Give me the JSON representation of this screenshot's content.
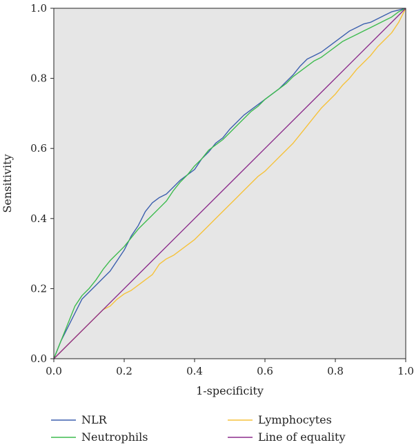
{
  "chart_data": {
    "type": "line",
    "title": "",
    "xlabel": "1-specificity",
    "ylabel": "Sensitivity",
    "xlim": [
      0,
      1
    ],
    "ylim": [
      0,
      1
    ],
    "grid": false,
    "legend_position": "bottom",
    "plot_background": "#e6e6e6",
    "x_ticks": [
      "0.0",
      "0.2",
      "0.4",
      "0.6",
      "0.8",
      "1.0"
    ],
    "y_ticks": [
      "0.0",
      "0.2",
      "0.4",
      "0.6",
      "0.8",
      "1.0"
    ],
    "series": [
      {
        "name": "NLR",
        "color": "#3b5fae",
        "x": [
          0,
          0.02,
          0.04,
          0.06,
          0.08,
          0.1,
          0.12,
          0.14,
          0.16,
          0.18,
          0.2,
          0.22,
          0.24,
          0.26,
          0.28,
          0.3,
          0.32,
          0.34,
          0.36,
          0.38,
          0.4,
          0.42,
          0.44,
          0.46,
          0.48,
          0.5,
          0.52,
          0.54,
          0.56,
          0.58,
          0.6,
          0.62,
          0.64,
          0.66,
          0.68,
          0.7,
          0.72,
          0.74,
          0.76,
          0.78,
          0.8,
          0.82,
          0.84,
          0.86,
          0.88,
          0.9,
          0.92,
          0.94,
          0.96,
          0.98,
          1.0
        ],
        "y": [
          0,
          0.05,
          0.09,
          0.13,
          0.17,
          0.19,
          0.21,
          0.23,
          0.25,
          0.28,
          0.31,
          0.35,
          0.38,
          0.42,
          0.445,
          0.46,
          0.47,
          0.49,
          0.51,
          0.525,
          0.54,
          0.57,
          0.59,
          0.615,
          0.63,
          0.655,
          0.675,
          0.695,
          0.71,
          0.725,
          0.74,
          0.755,
          0.77,
          0.79,
          0.81,
          0.835,
          0.855,
          0.865,
          0.875,
          0.89,
          0.905,
          0.92,
          0.935,
          0.945,
          0.955,
          0.96,
          0.97,
          0.98,
          0.99,
          0.995,
          1.0
        ]
      },
      {
        "name": "Neutrophils",
        "color": "#3dbb4e",
        "x": [
          0,
          0.02,
          0.04,
          0.06,
          0.08,
          0.1,
          0.12,
          0.14,
          0.16,
          0.18,
          0.2,
          0.22,
          0.24,
          0.26,
          0.28,
          0.3,
          0.32,
          0.34,
          0.36,
          0.38,
          0.4,
          0.42,
          0.44,
          0.46,
          0.48,
          0.5,
          0.52,
          0.54,
          0.56,
          0.58,
          0.6,
          0.62,
          0.64,
          0.66,
          0.68,
          0.7,
          0.72,
          0.74,
          0.76,
          0.78,
          0.8,
          0.82,
          0.84,
          0.86,
          0.88,
          0.9,
          0.92,
          0.94,
          0.96,
          0.98,
          1.0
        ],
        "y": [
          0,
          0.05,
          0.1,
          0.15,
          0.18,
          0.2,
          0.225,
          0.255,
          0.28,
          0.3,
          0.32,
          0.345,
          0.37,
          0.39,
          0.41,
          0.43,
          0.45,
          0.48,
          0.505,
          0.525,
          0.55,
          0.57,
          0.595,
          0.61,
          0.625,
          0.645,
          0.665,
          0.685,
          0.705,
          0.72,
          0.74,
          0.755,
          0.77,
          0.785,
          0.805,
          0.82,
          0.835,
          0.85,
          0.86,
          0.875,
          0.89,
          0.905,
          0.915,
          0.925,
          0.935,
          0.945,
          0.955,
          0.965,
          0.975,
          0.99,
          1.0
        ]
      },
      {
        "name": "Lymphocytes",
        "color": "#f6c23a",
        "x": [
          0,
          0.02,
          0.04,
          0.06,
          0.08,
          0.1,
          0.12,
          0.14,
          0.16,
          0.18,
          0.2,
          0.22,
          0.24,
          0.26,
          0.28,
          0.3,
          0.32,
          0.34,
          0.36,
          0.38,
          0.4,
          0.42,
          0.44,
          0.46,
          0.48,
          0.5,
          0.52,
          0.54,
          0.56,
          0.58,
          0.6,
          0.62,
          0.64,
          0.66,
          0.68,
          0.7,
          0.72,
          0.74,
          0.76,
          0.78,
          0.8,
          0.82,
          0.84,
          0.86,
          0.88,
          0.9,
          0.92,
          0.94,
          0.96,
          0.98,
          1.0
        ],
        "y": [
          0,
          0.02,
          0.04,
          0.06,
          0.08,
          0.1,
          0.12,
          0.14,
          0.15,
          0.17,
          0.185,
          0.195,
          0.21,
          0.225,
          0.24,
          0.27,
          0.285,
          0.295,
          0.31,
          0.325,
          0.34,
          0.36,
          0.38,
          0.4,
          0.42,
          0.44,
          0.46,
          0.48,
          0.5,
          0.52,
          0.535,
          0.555,
          0.575,
          0.595,
          0.615,
          0.64,
          0.665,
          0.69,
          0.715,
          0.735,
          0.755,
          0.78,
          0.8,
          0.825,
          0.845,
          0.865,
          0.89,
          0.91,
          0.93,
          0.96,
          1.0
        ]
      },
      {
        "name": "Line of equality",
        "color": "#8b2b8b",
        "x": [
          0,
          1
        ],
        "y": [
          0,
          1
        ]
      }
    ]
  }
}
